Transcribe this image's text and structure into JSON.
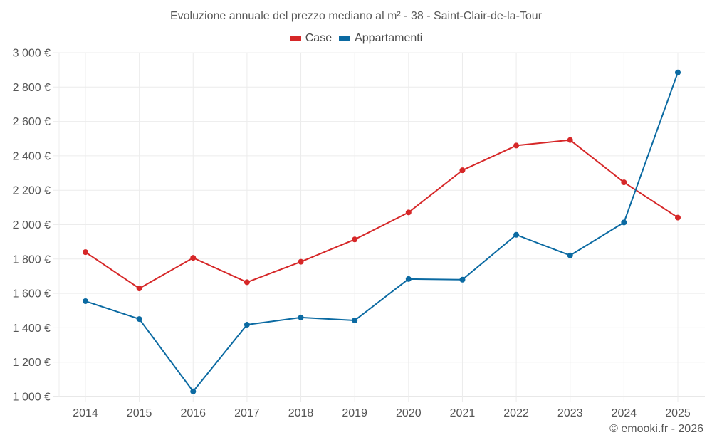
{
  "chart_data": {
    "type": "line",
    "title": "Evoluzione annuale del prezzo mediano al m² - 38 - Saint-Clair-de-la-Tour",
    "xlabel": "",
    "ylabel": "",
    "x": [
      "2014",
      "2015",
      "2016",
      "2017",
      "2018",
      "2019",
      "2020",
      "2021",
      "2022",
      "2023",
      "2024",
      "2025"
    ],
    "ylim": [
      1000,
      3000
    ],
    "yticks": [
      1000,
      1200,
      1400,
      1600,
      1800,
      2000,
      2200,
      2400,
      2600,
      2800,
      3000
    ],
    "ytick_labels": [
      "1 000 €",
      "1 200 €",
      "1 400 €",
      "1 600 €",
      "1 800 €",
      "2 000 €",
      "2 200 €",
      "2 400 €",
      "2 600 €",
      "2 800 €",
      "3 000 €"
    ],
    "grid": true,
    "legend_position": "top-center",
    "series": [
      {
        "name": "Case",
        "color": "#d62728",
        "values": [
          1840,
          1629,
          1807,
          1665,
          1784,
          1914,
          2071,
          2316,
          2460,
          2492,
          2246,
          2041
        ]
      },
      {
        "name": "Appartamenti",
        "color": "#0b6aa2",
        "values": [
          1555,
          1451,
          1030,
          1418,
          1460,
          1443,
          1684,
          1680,
          1941,
          1821,
          2013,
          2885
        ]
      }
    ]
  },
  "credit": "© emooki.fr - 2026"
}
